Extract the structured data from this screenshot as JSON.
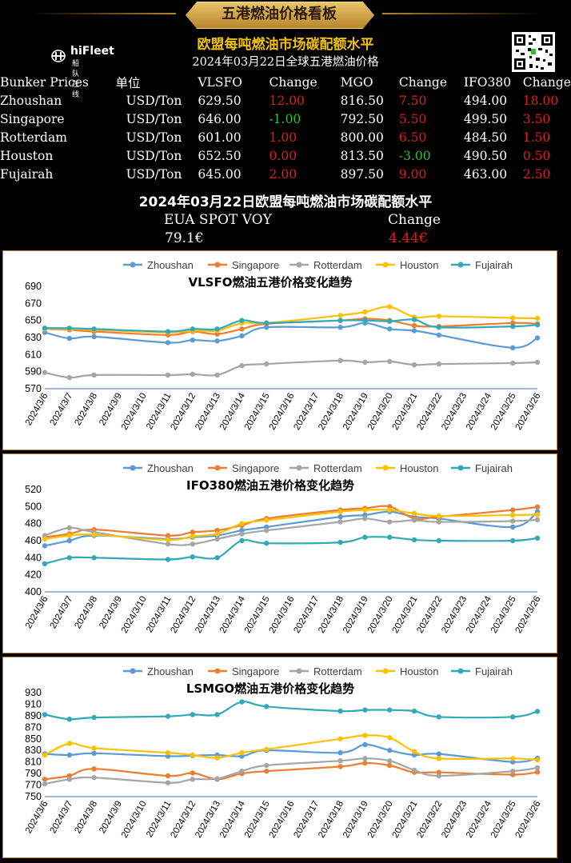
{
  "header": {
    "board_title": "五港燃油价格看板",
    "subtitle": "欧盟每吨燃油市场碳配额水平",
    "date_line": "2024年03月22日全球五港燃油价格",
    "logo_name": "hiFleet",
    "logo_cn": "船队在线"
  },
  "prices": {
    "columns": [
      "Bunker Prices",
      "单位",
      "VLSFO",
      "Change",
      "MGO",
      "Change",
      "IFO380",
      "Change"
    ],
    "rows": [
      {
        "port": "Zhoushan",
        "unit": "USD/Ton",
        "vlsfo": "629.50",
        "vlsfo_chg": "12.00",
        "vlsfo_dir": "up",
        "mgo": "816.50",
        "mgo_chg": "7.50",
        "mgo_dir": "up",
        "ifo": "494.00",
        "ifo_chg": "18.00",
        "ifo_dir": "up"
      },
      {
        "port": "Singapore",
        "unit": "USD/Ton",
        "vlsfo": "646.00",
        "vlsfo_chg": "-1.00",
        "vlsfo_dir": "down",
        "mgo": "792.50",
        "mgo_chg": "5.50",
        "mgo_dir": "up",
        "ifo": "499.50",
        "ifo_chg": "3.50",
        "ifo_dir": "up"
      },
      {
        "port": "Rotterdam",
        "unit": "USD/Ton",
        "vlsfo": "601.00",
        "vlsfo_chg": "1.00",
        "vlsfo_dir": "up",
        "mgo": "800.00",
        "mgo_chg": "6.50",
        "mgo_dir": "up",
        "ifo": "484.50",
        "ifo_chg": "1.50",
        "ifo_dir": "up"
      },
      {
        "port": "Houston",
        "unit": "USD/Ton",
        "vlsfo": "652.50",
        "vlsfo_chg": "0.00",
        "vlsfo_dir": "up",
        "mgo": "813.50",
        "mgo_chg": "-3.00",
        "mgo_dir": "down",
        "ifo": "490.50",
        "ifo_chg": "0.50",
        "ifo_dir": "up"
      },
      {
        "port": "Fujairah",
        "unit": "USD/Ton",
        "vlsfo": "645.00",
        "vlsfo_chg": "2.00",
        "vlsfo_dir": "up",
        "mgo": "897.50",
        "mgo_chg": "9.00",
        "mgo_dir": "up",
        "ifo": "463.00",
        "ifo_chg": "2.50",
        "ifo_dir": "up"
      }
    ]
  },
  "eua": {
    "title": "2024年03月22日欧盟每吨燃油市场碳配额水平",
    "label": "EUA SPOT VOY",
    "change_label": "Change",
    "value": "79.1€",
    "change": "4.44€"
  },
  "colors": {
    "Zhoushan": "#5b9bd5",
    "Singapore": "#ed7d31",
    "Rotterdam": "#a5a5a5",
    "Houston": "#ffc000",
    "Fujairah": "#31a9b8"
  },
  "chart_data": [
    {
      "type": "line",
      "title": "VLSFO燃油五港价格变化趋势",
      "categories": [
        "2024/3/6",
        "2024/3/7",
        "2024/3/8",
        "2024/3/9",
        "2024/3/10",
        "2024/3/11",
        "2024/3/12",
        "2024/3/13",
        "2024/3/14",
        "2024/3/15",
        "2024/3/16",
        "2024/3/17",
        "2024/3/18",
        "2024/3/19",
        "2024/3/20",
        "2024/3/21",
        "2024/3/22",
        "2024/3/23",
        "2024/3/24",
        "2024/3/25",
        "2024/3/26"
      ],
      "ylim": [
        570,
        690
      ],
      "yticks": [
        570,
        590,
        610,
        630,
        650,
        670,
        690
      ],
      "legend": "top",
      "grid": false,
      "series": [
        {
          "name": "Zhoushan",
          "values": [
            636,
            629,
            631,
            null,
            null,
            624,
            627,
            626,
            632,
            642,
            null,
            null,
            642,
            647,
            640,
            638,
            633,
            null,
            null,
            618,
            629.5
          ]
        },
        {
          "name": "Singapore",
          "values": [
            640,
            639,
            637,
            null,
            null,
            633,
            637,
            634,
            640,
            646,
            null,
            null,
            650,
            652,
            650,
            644,
            643,
            null,
            null,
            647,
            646
          ]
        },
        {
          "name": "Rotterdam",
          "values": [
            589,
            583,
            586,
            null,
            null,
            586,
            587,
            586,
            597,
            599,
            null,
            null,
            603,
            601,
            602,
            598,
            599,
            null,
            null,
            600,
            601
          ]
        },
        {
          "name": "Houston",
          "values": [
            640,
            640,
            639,
            null,
            null,
            636,
            638,
            638,
            647,
            647,
            null,
            null,
            656,
            660,
            666,
            654,
            655,
            null,
            null,
            653,
            652.5
          ]
        },
        {
          "name": "Fujairah",
          "values": [
            641,
            641,
            640,
            null,
            null,
            637,
            640,
            640,
            650,
            647,
            null,
            null,
            650,
            650,
            649,
            651,
            642,
            null,
            null,
            643,
            645
          ]
        }
      ]
    },
    {
      "type": "line",
      "title": "IFO380燃油五港价格变化趋势",
      "categories": [
        "2024/3/6",
        "2024/3/7",
        "2024/3/8",
        "2024/3/9",
        "2024/3/10",
        "2024/3/11",
        "2024/3/12",
        "2024/3/13",
        "2024/3/14",
        "2024/3/15",
        "2024/3/16",
        "2024/3/17",
        "2024/3/18",
        "2024/3/19",
        "2024/3/20",
        "2024/3/21",
        "2024/3/22",
        "2024/3/23",
        "2024/3/24",
        "2024/3/25",
        "2024/3/26"
      ],
      "ylim": [
        400,
        520
      ],
      "yticks": [
        400,
        420,
        440,
        460,
        480,
        500,
        520
      ],
      "legend": "top",
      "grid": false,
      "series": [
        {
          "name": "Zhoushan",
          "values": [
            454,
            460,
            466,
            null,
            null,
            462,
            464,
            466,
            472,
            476,
            null,
            null,
            488,
            490,
            494,
            488,
            486,
            null,
            null,
            476,
            494
          ]
        },
        {
          "name": "Singapore",
          "values": [
            464,
            468,
            473,
            null,
            null,
            466,
            470,
            472,
            478,
            486,
            null,
            null,
            496,
            498,
            500,
            486,
            488,
            null,
            null,
            496,
            499.5
          ]
        },
        {
          "name": "Rotterdam",
          "values": [
            466,
            475,
            470,
            null,
            null,
            456,
            456,
            462,
            468,
            472,
            null,
            null,
            482,
            486,
            482,
            484,
            482,
            null,
            null,
            483,
            484.5
          ]
        },
        {
          "name": "Houston",
          "values": [
            462,
            466,
            467,
            null,
            null,
            461,
            465,
            468,
            480,
            484,
            null,
            null,
            494,
            496,
            496,
            492,
            489,
            null,
            null,
            490,
            490.5
          ]
        },
        {
          "name": "Fujairah",
          "values": [
            433,
            440,
            440,
            null,
            null,
            438,
            441,
            440,
            460,
            457,
            null,
            null,
            458,
            464,
            464,
            461,
            460,
            null,
            null,
            460,
            463
          ]
        }
      ]
    },
    {
      "type": "line",
      "title": "LSMGO燃油五港价格变化趋势",
      "categories": [
        "2024/3/6",
        "2024/3/7",
        "2024/3/8",
        "2024/3/9",
        "2024/3/10",
        "2024/3/11",
        "2024/3/12",
        "2024/3/13",
        "2024/3/14",
        "2024/3/15",
        "2024/3/16",
        "2024/3/17",
        "2024/3/18",
        "2024/3/19",
        "2024/3/20",
        "2024/3/21",
        "2024/3/22",
        "2024/3/23",
        "2024/3/24",
        "2024/3/25",
        "2024/3/26"
      ],
      "ylim": [
        750,
        930
      ],
      "yticks": [
        750,
        770,
        790,
        810,
        830,
        850,
        870,
        890,
        910,
        930
      ],
      "legend": "top",
      "grid": false,
      "series": [
        {
          "name": "Zhoushan",
          "values": [
            824,
            822,
            825,
            null,
            null,
            820,
            821,
            822,
            820,
            830,
            null,
            null,
            826,
            840,
            830,
            822,
            824,
            null,
            null,
            810,
            816.5
          ]
        },
        {
          "name": "Singapore",
          "values": [
            780,
            786,
            798,
            null,
            null,
            786,
            791,
            780,
            790,
            794,
            null,
            null,
            802,
            808,
            804,
            792,
            792,
            null,
            null,
            788,
            792.5
          ]
        },
        {
          "name": "Rotterdam",
          "values": [
            772,
            780,
            783,
            null,
            null,
            774,
            780,
            781,
            794,
            804,
            null,
            null,
            812,
            816,
            812,
            796,
            786,
            null,
            null,
            794,
            800
          ]
        },
        {
          "name": "Houston",
          "values": [
            822,
            842,
            834,
            null,
            null,
            826,
            822,
            817,
            826,
            832,
            null,
            null,
            850,
            856,
            852,
            828,
            816,
            null,
            null,
            816,
            813.5
          ]
        },
        {
          "name": "Fujairah",
          "values": [
            892,
            884,
            887,
            null,
            null,
            889,
            892,
            892,
            914,
            906,
            null,
            null,
            898,
            900,
            900,
            898,
            888,
            null,
            null,
            888,
            897.5
          ]
        }
      ]
    }
  ]
}
